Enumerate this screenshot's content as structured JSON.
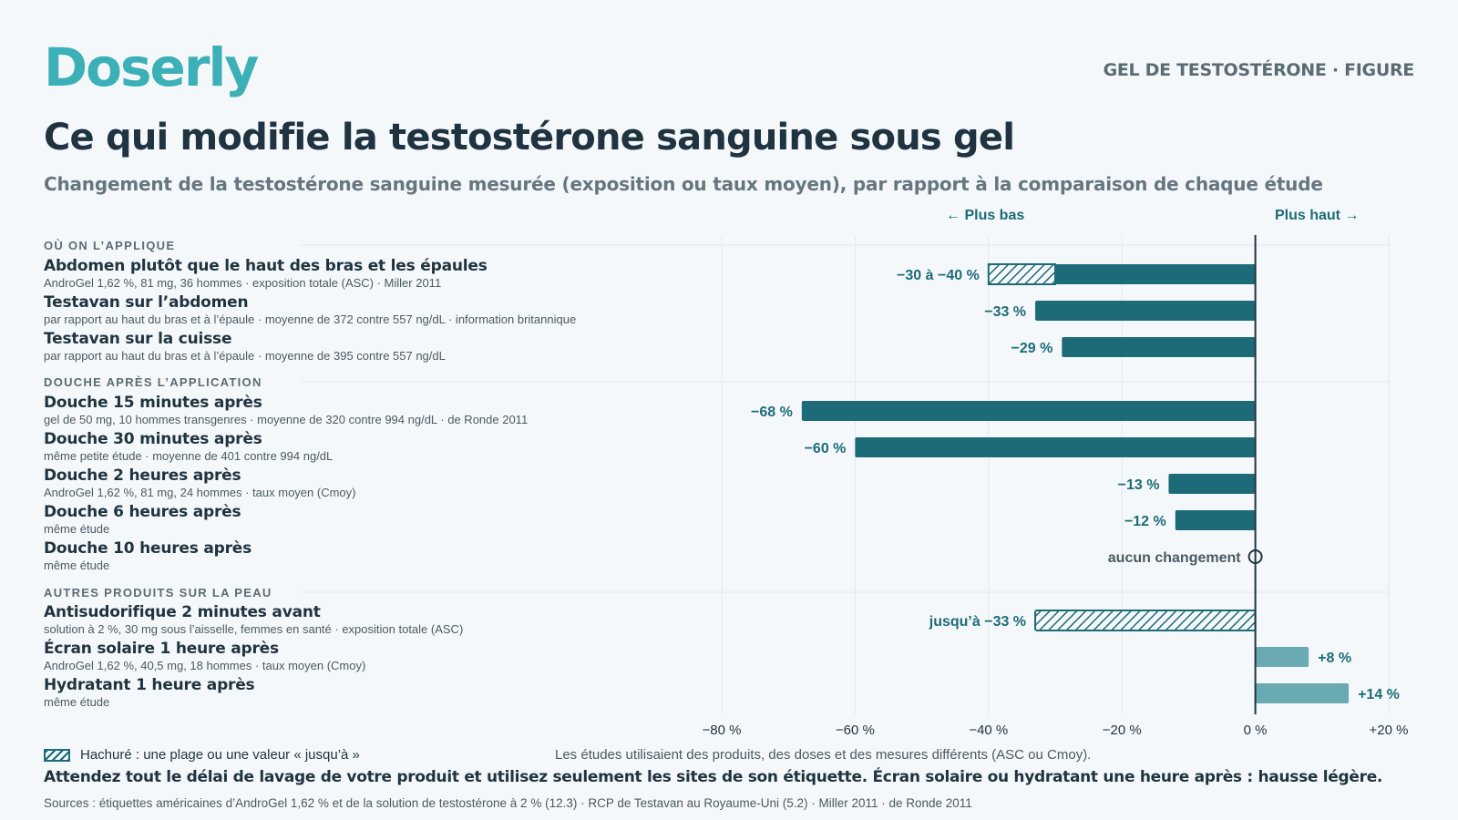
{
  "brand": "Doserly",
  "kicker": "GEL DE TESTOSTÉRONE · FIGURE",
  "title": "Ce qui modifie la testostérone sanguine sous gel",
  "subtitle": "Changement de la testostérone sanguine mesurée (exposition ou taux moyen), par rapport à la comparaison de chaque étude",
  "direction": {
    "lower": "← Plus bas",
    "higher": "Plus haut →"
  },
  "sections": [
    {
      "label": "OÙ ON L’APPLIQUE"
    },
    {
      "label": "DOUCHE APRÈS L’APPLICATION"
    },
    {
      "label": "AUTRES PRODUITS SUR LA PEAU"
    }
  ],
  "rows": [
    {
      "title": "Abdomen plutôt que le haut des bras et les épaules",
      "sub": "AndroGel 1,62 %, 81 mg, 36 hommes · exposition totale (ASC) · Miller 2011"
    },
    {
      "title": "Testavan sur l’abdomen",
      "sub": "par rapport au haut du bras et à l’épaule · moyenne de 372 contre 557 ng/dL · information britannique"
    },
    {
      "title": "Testavan sur la cuisse",
      "sub": "par rapport au haut du bras et à l’épaule · moyenne de 395 contre 557 ng/dL"
    },
    {
      "title": "Douche 15 minutes après",
      "sub": "gel de 50 mg, 10 hommes transgenres · moyenne de 320 contre 994 ng/dL · de Ronde 2011"
    },
    {
      "title": "Douche 30 minutes après",
      "sub": "même petite étude · moyenne de 401 contre 994 ng/dL"
    },
    {
      "title": "Douche 2 heures après",
      "sub": "AndroGel 1,62 %, 81 mg, 24 hommes · taux moyen (Cmoy)"
    },
    {
      "title": "Douche 6 heures après",
      "sub": "même étude"
    },
    {
      "title": "Douche 10 heures après",
      "sub": "même étude"
    },
    {
      "title": "Antisudorifique 2 minutes avant",
      "sub": "solution à 2 %, 30 mg sous l’aisselle, femmes en santé · exposition totale (ASC)"
    },
    {
      "title": "Écran solaire 1 heure après",
      "sub": "AndroGel 1,62 %, 40,5 mg, 18 hommes · taux moyen (Cmoy)"
    },
    {
      "title": "Hydratant 1 heure après",
      "sub": "même étude"
    }
  ],
  "chart_data": {
    "type": "bar",
    "orientation": "horizontal",
    "unit": "%",
    "xlim": [
      -80,
      20
    ],
    "xticks": [
      -80,
      -60,
      -40,
      -20,
      0,
      20
    ],
    "xtick_labels": [
      "−80 %",
      "−60 %",
      "−40 %",
      "−20 %",
      "0 %",
      "+20 %"
    ],
    "grid": true,
    "categories": [
      "Abdomen plutôt que le haut des bras et les épaules",
      "Testavan sur l’abdomen",
      "Testavan sur la cuisse",
      "Douche 15 minutes après",
      "Douche 30 minutes après",
      "Douche 2 heures après",
      "Douche 6 heures après",
      "Douche 10 heures après",
      "Antisudorifique 2 minutes avant",
      "Écran solaire 1 heure après",
      "Hydratant 1 heure après"
    ],
    "bars": [
      {
        "value": -30,
        "range_to": -40,
        "label": "−30 à −40 %",
        "style": "solid+hatched"
      },
      {
        "value": -33,
        "label": "−33 %",
        "style": "solid"
      },
      {
        "value": -29,
        "label": "−29 %",
        "style": "solid"
      },
      {
        "value": -68,
        "label": "−68 %",
        "style": "solid"
      },
      {
        "value": -60,
        "label": "−60 %",
        "style": "solid"
      },
      {
        "value": -13,
        "label": "−13 %",
        "style": "solid"
      },
      {
        "value": -12,
        "label": "−12 %",
        "style": "solid"
      },
      {
        "value": 0,
        "label": "aucun changement",
        "style": "marker"
      },
      {
        "value": -33,
        "label": "jusqu’à −33 %",
        "style": "hatched"
      },
      {
        "value": 8,
        "label": "+8 %",
        "style": "light"
      },
      {
        "value": 14,
        "label": "+14 %",
        "style": "light"
      }
    ],
    "colors": {
      "dark": "#1d6b78",
      "light": "#6aaab3",
      "axis": "#1f3440"
    }
  },
  "legend": "Hachuré : une plage ou une valeur « jusqu’à »",
  "note": "Les études utilisaient des produits, des doses et des mesures différents (ASC ou Cmoy).",
  "footer": "Attendez tout le délai de lavage de votre produit et utilisez seulement les sites de son étiquette. Écran solaire ou hydratant une heure après : hausse légère.",
  "sources": "Sources : étiquettes américaines d’AndroGel 1,62 % et de la solution de testostérone à 2 % (12.3) · RCP de Testavan au Royaume-Uni (5.2) · Miller 2011 · de Ronde 2011"
}
